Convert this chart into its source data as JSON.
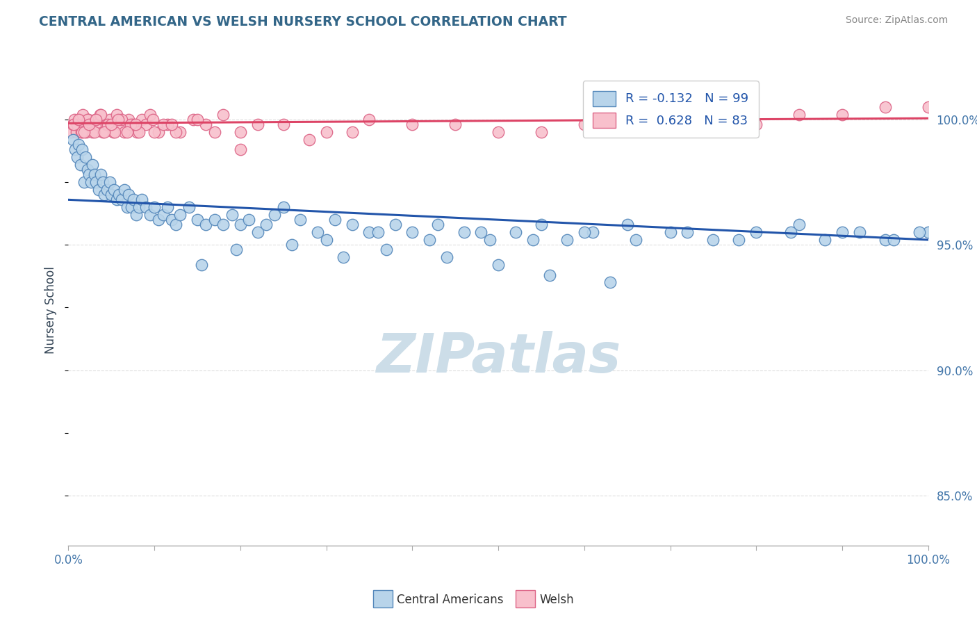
{
  "title": "CENTRAL AMERICAN VS WELSH NURSERY SCHOOL CORRELATION CHART",
  "source_text": "Source: ZipAtlas.com",
  "ylabel": "Nursery School",
  "xlim": [
    0.0,
    100.0
  ],
  "ylim": [
    83.0,
    101.8
  ],
  "yticks_right": [
    85.0,
    90.0,
    95.0,
    100.0
  ],
  "xticks": [
    0.0,
    10.0,
    20.0,
    30.0,
    40.0,
    50.0,
    60.0,
    70.0,
    80.0,
    90.0,
    100.0
  ],
  "blue_color": "#b8d4ea",
  "blue_edge_color": "#5588bb",
  "pink_color": "#f8c0cc",
  "pink_edge_color": "#dd6688",
  "blue_line_color": "#2255aa",
  "pink_line_color": "#dd4466",
  "grid_color": "#dddddd",
  "R_blue": -0.132,
  "N_blue": 99,
  "R_pink": 0.628,
  "N_pink": 83,
  "legend_label_blue": "Central Americans",
  "legend_label_pink": "Welsh",
  "watermark": "ZIPatlas",
  "watermark_color": "#ccdde8",
  "title_color": "#336688",
  "axis_label_color": "#334455",
  "tick_label_color": "#4477aa",
  "blue_scatter_x": [
    0.5,
    0.8,
    1.0,
    1.2,
    1.4,
    1.6,
    1.8,
    2.0,
    2.2,
    2.4,
    2.6,
    2.8,
    3.0,
    3.2,
    3.5,
    3.8,
    4.0,
    4.2,
    4.5,
    4.8,
    5.0,
    5.3,
    5.6,
    5.9,
    6.2,
    6.5,
    6.8,
    7.0,
    7.3,
    7.6,
    7.9,
    8.2,
    8.5,
    9.0,
    9.5,
    10.0,
    10.5,
    11.0,
    11.5,
    12.0,
    12.5,
    13.0,
    14.0,
    15.0,
    16.0,
    17.0,
    18.0,
    19.0,
    20.0,
    21.0,
    22.0,
    23.0,
    24.0,
    25.0,
    27.0,
    29.0,
    31.0,
    33.0,
    35.0,
    38.0,
    40.0,
    43.0,
    46.0,
    49.0,
    52.0,
    55.0,
    58.0,
    61.0,
    65.0,
    70.0,
    75.0,
    80.0,
    85.0,
    90.0,
    95.0,
    100.0,
    30.0,
    36.0,
    42.0,
    48.0,
    54.0,
    60.0,
    66.0,
    72.0,
    78.0,
    84.0,
    88.0,
    92.0,
    96.0,
    99.0,
    15.5,
    19.5,
    26.0,
    32.0,
    37.0,
    44.0,
    50.0,
    56.0,
    63.0
  ],
  "blue_scatter_y": [
    99.2,
    98.8,
    98.5,
    99.0,
    98.2,
    98.8,
    97.5,
    98.5,
    98.0,
    97.8,
    97.5,
    98.2,
    97.8,
    97.5,
    97.2,
    97.8,
    97.5,
    97.0,
    97.2,
    97.5,
    97.0,
    97.2,
    96.8,
    97.0,
    96.8,
    97.2,
    96.5,
    97.0,
    96.5,
    96.8,
    96.2,
    96.5,
    96.8,
    96.5,
    96.2,
    96.5,
    96.0,
    96.2,
    96.5,
    96.0,
    95.8,
    96.2,
    96.5,
    96.0,
    95.8,
    96.0,
    95.8,
    96.2,
    95.8,
    96.0,
    95.5,
    95.8,
    96.2,
    96.5,
    96.0,
    95.5,
    96.0,
    95.8,
    95.5,
    95.8,
    95.5,
    95.8,
    95.5,
    95.2,
    95.5,
    95.8,
    95.2,
    95.5,
    95.8,
    95.5,
    95.2,
    95.5,
    95.8,
    95.5,
    95.2,
    95.5,
    95.2,
    95.5,
    95.2,
    95.5,
    95.2,
    95.5,
    95.2,
    95.5,
    95.2,
    95.5,
    95.2,
    95.5,
    95.2,
    95.5,
    94.2,
    94.8,
    95.0,
    94.5,
    94.8,
    94.5,
    94.2,
    93.8,
    93.5
  ],
  "pink_scatter_x": [
    0.3,
    0.5,
    0.7,
    0.9,
    1.1,
    1.3,
    1.5,
    1.7,
    1.9,
    2.1,
    2.3,
    2.5,
    2.8,
    3.1,
    3.4,
    3.7,
    4.0,
    4.4,
    4.8,
    5.2,
    5.6,
    6.0,
    6.5,
    7.0,
    7.5,
    8.0,
    8.5,
    9.0,
    9.5,
    10.5,
    11.5,
    13.0,
    14.5,
    16.0,
    18.0,
    20.0,
    25.0,
    30.0,
    35.0,
    40.0,
    50.0,
    60.0,
    70.0,
    80.0,
    90.0,
    100.0,
    1.0,
    1.6,
    2.2,
    3.0,
    3.8,
    4.6,
    5.4,
    6.2,
    7.2,
    8.2,
    9.8,
    11.0,
    12.5,
    15.0,
    17.0,
    22.0,
    28.0,
    33.0,
    45.0,
    55.0,
    65.0,
    75.0,
    85.0,
    95.0,
    0.6,
    1.2,
    1.8,
    2.4,
    3.2,
    4.2,
    5.0,
    5.8,
    6.8,
    7.8,
    10.0,
    12.0,
    20.0
  ],
  "pink_scatter_y": [
    99.5,
    99.8,
    100.0,
    99.5,
    99.8,
    100.0,
    99.5,
    100.2,
    99.8,
    99.5,
    100.0,
    99.8,
    99.5,
    100.0,
    99.8,
    100.2,
    99.5,
    99.8,
    100.0,
    99.5,
    100.2,
    99.8,
    99.5,
    100.0,
    99.8,
    99.5,
    100.0,
    99.8,
    100.2,
    99.5,
    99.8,
    99.5,
    100.0,
    99.8,
    100.2,
    99.5,
    99.8,
    99.5,
    100.0,
    99.8,
    99.5,
    99.8,
    100.0,
    99.8,
    100.2,
    100.5,
    99.8,
    99.5,
    100.0,
    99.5,
    100.2,
    99.8,
    99.5,
    100.0,
    99.8,
    99.5,
    100.0,
    99.8,
    99.5,
    100.0,
    99.5,
    99.8,
    99.2,
    99.5,
    99.8,
    99.5,
    99.8,
    100.0,
    100.2,
    100.5,
    99.8,
    100.0,
    99.5,
    99.8,
    100.0,
    99.5,
    99.8,
    100.0,
    99.5,
    99.8,
    99.5,
    99.8,
    98.8
  ]
}
